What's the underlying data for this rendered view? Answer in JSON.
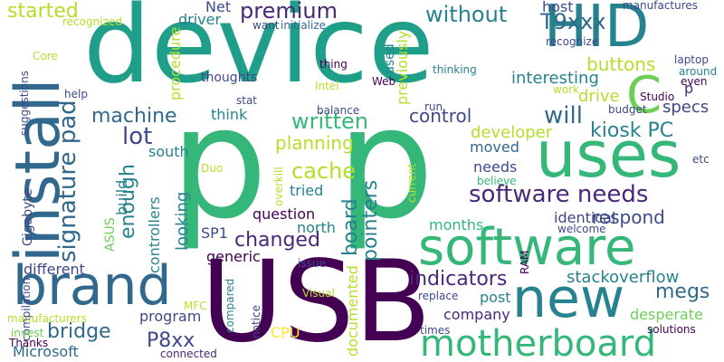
{
  "colors": {
    "background": "#ffffff",
    "purple": "#440154",
    "indigo": "#482878",
    "blue": "#3e4989",
    "steel": "#31688e",
    "teal": "#26828e",
    "sea": "#1f9e89",
    "green": "#35b779",
    "lime": "#6ece58",
    "chartreuse": "#b5de2b",
    "yellow": "#fde725"
  },
  "words": [
    {
      "text": "device",
      "color": "#1f9e89"
    },
    {
      "text": "p",
      "color": "#35b779"
    },
    {
      "text": "p",
      "color": "#35b779"
    },
    {
      "text": "USB",
      "color": "#440154"
    },
    {
      "text": "HID",
      "color": "#26828e"
    },
    {
      "text": "uses",
      "color": "#35b779"
    },
    {
      "text": "software",
      "color": "#35b779"
    },
    {
      "text": "install",
      "color": "#31688e"
    },
    {
      "text": "brand",
      "color": "#31688e"
    },
    {
      "text": "new",
      "color": "#26828e"
    },
    {
      "text": "motherboard",
      "color": "#35b779"
    },
    {
      "text": "C",
      "color": "#6ece58"
    },
    {
      "text": "software needs",
      "color": "#482878"
    },
    {
      "text": "signature pad",
      "color": "#31688e"
    },
    {
      "text": "kiosk PC",
      "color": "#26828e"
    },
    {
      "text": "premium",
      "color": "#482878"
    },
    {
      "text": "without",
      "color": "#26828e"
    },
    {
      "text": "T9xxx",
      "color": "#31688e"
    },
    {
      "text": "started",
      "color": "#b5de2b"
    },
    {
      "text": "will",
      "color": "#31688e"
    },
    {
      "text": "lot",
      "color": "#3e4989"
    },
    {
      "text": "machine",
      "color": "#31688e"
    },
    {
      "text": "written",
      "color": "#35b779"
    },
    {
      "text": "control",
      "color": "#3e4989"
    },
    {
      "text": "cache",
      "color": "#b5de2b"
    },
    {
      "text": "enough",
      "color": "#26828e"
    },
    {
      "text": "changed",
      "color": "#482878"
    },
    {
      "text": "board",
      "color": "#26828e"
    },
    {
      "text": "pointers",
      "color": "#26828e"
    },
    {
      "text": "bridge",
      "color": "#31688e"
    },
    {
      "text": "indicators",
      "color": "#482878"
    },
    {
      "text": "megs",
      "color": "#31688e"
    },
    {
      "text": "P8xx",
      "color": "#3e4989"
    },
    {
      "text": "buttons",
      "color": "#b5de2b"
    },
    {
      "text": "specs",
      "color": "#3e4989"
    },
    {
      "text": "planning",
      "color": "#b5de2b"
    },
    {
      "text": "respond",
      "color": "#3e4989"
    },
    {
      "text": "question",
      "color": "#440154"
    },
    {
      "text": "developer",
      "color": "#b5de2b"
    },
    {
      "text": "interesting",
      "color": "#26828e"
    },
    {
      "text": "drive",
      "color": "#b5de2b"
    },
    {
      "text": "stackoverflow",
      "color": "#26828e"
    },
    {
      "text": "company",
      "color": "#482878"
    },
    {
      "text": "desperate",
      "color": "#6ece58"
    },
    {
      "text": "program",
      "color": "#3e4989"
    },
    {
      "text": "Microsoft",
      "color": "#31688e"
    },
    {
      "text": "different",
      "color": "#3e4989"
    },
    {
      "text": "generic",
      "color": "#440154"
    },
    {
      "text": "looking",
      "color": "#26828e"
    },
    {
      "text": "controllers",
      "color": "#26828e"
    },
    {
      "text": "build",
      "color": "#26828e"
    },
    {
      "text": "needs",
      "color": "#3e4989"
    },
    {
      "text": "moved",
      "color": "#31688e"
    },
    {
      "text": "tried",
      "color": "#26828e"
    },
    {
      "text": "north",
      "color": "#26828e"
    },
    {
      "text": "south",
      "color": "#26828e"
    },
    {
      "text": "think",
      "color": "#26828e"
    },
    {
      "text": "identical",
      "color": "#3e4989"
    },
    {
      "text": "months",
      "color": "#35b779"
    },
    {
      "text": "post",
      "color": "#26828e"
    },
    {
      "text": "documented",
      "color": "#b5de2b"
    },
    {
      "text": "previously",
      "color": "#b5de2b"
    },
    {
      "text": "procedure",
      "color": "#b5de2b"
    },
    {
      "text": "driver",
      "color": "#26828e"
    },
    {
      "text": "host",
      "color": "#3e4989"
    },
    {
      "text": "Net",
      "color": "#3e4989"
    },
    {
      "text": "SP1",
      "color": "#3e4989"
    },
    {
      "text": "CPU",
      "color": "#fde725"
    },
    {
      "text": "p",
      "color": "#482878"
    },
    {
      "text": "used",
      "color": "#26828e"
    },
    {
      "text": "thing",
      "color": "#440154"
    },
    {
      "text": "thoughts",
      "color": "#3e4989"
    },
    {
      "text": "ASUS",
      "color": "#6ece58"
    },
    {
      "text": "Gigabyte",
      "color": "#3e4989"
    },
    {
      "text": "recognized",
      "color": "#b5de2b"
    },
    {
      "text": "recognize",
      "color": "#3e4989"
    },
    {
      "text": "initialize",
      "color": "#31688e"
    },
    {
      "text": "want",
      "color": "#3e4989"
    },
    {
      "text": "manufactures",
      "color": "#3e4989"
    },
    {
      "text": "manufacturers",
      "color": "#b5de2b"
    },
    {
      "text": "laptop",
      "color": "#3e4989"
    },
    {
      "text": "around",
      "color": "#26828e"
    },
    {
      "text": "even",
      "color": "#440154"
    },
    {
      "text": "Studio",
      "color": "#440154"
    },
    {
      "text": "thinking",
      "color": "#26828e"
    },
    {
      "text": "work",
      "color": "#b5de2b"
    },
    {
      "text": "budget",
      "color": "#3e4989"
    },
    {
      "text": "etc",
      "color": "#3e4989"
    },
    {
      "text": "believe",
      "color": "#35b779"
    },
    {
      "text": "overkill",
      "color": "#b5de2b"
    },
    {
      "text": "current",
      "color": "#b5de2b"
    },
    {
      "text": "Duo",
      "color": "#b5de2b"
    },
    {
      "text": "stat",
      "color": "#3e4989"
    },
    {
      "text": "balance",
      "color": "#3e4989"
    },
    {
      "text": "Intel",
      "color": "#b5de2b"
    },
    {
      "text": "Web",
      "color": "#440154"
    },
    {
      "text": "run",
      "color": "#3e4989"
    },
    {
      "text": "help",
      "color": "#3e4989"
    },
    {
      "text": "Core",
      "color": "#b5de2b"
    },
    {
      "text": "suggestions",
      "color": "#3e4989"
    },
    {
      "text": "compilation",
      "color": "#3e4989"
    },
    {
      "text": "Thanks",
      "color": "#440154"
    },
    {
      "text": "invest",
      "color": "#6ece58"
    },
    {
      "text": "MFC",
      "color": "#b5de2b"
    },
    {
      "text": "compared",
      "color": "#26828e"
    },
    {
      "text": "notice",
      "color": "#3e4989"
    },
    {
      "text": "connected",
      "color": "#482878"
    },
    {
      "text": "issue",
      "color": "#3e4989"
    },
    {
      "text": "Visual",
      "color": "#b5de2b"
    },
    {
      "text": "RAM",
      "color": "#440154"
    },
    {
      "text": "replace",
      "color": "#3e4989"
    },
    {
      "text": "times",
      "color": "#3e4989"
    },
    {
      "text": "solutions",
      "color": "#440154"
    },
    {
      "text": "welcome",
      "color": "#3e4989"
    }
  ]
}
